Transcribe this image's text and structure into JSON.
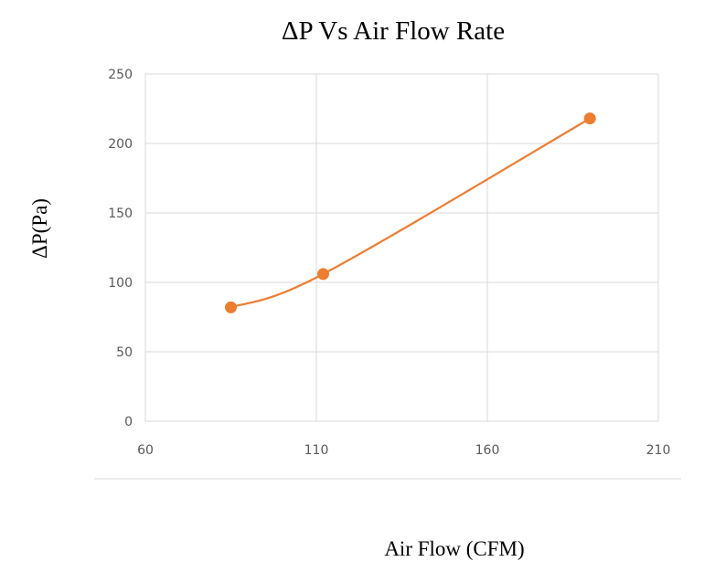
{
  "chart_data": {
    "type": "scatter",
    "title": "ΔP Vs Air Flow Rate",
    "xlabel": "Air Flow (CFM)",
    "ylabel": "ΔP(Pa)",
    "xlim": [
      60,
      210
    ],
    "ylim": [
      0,
      250
    ],
    "xticks": [
      60,
      110,
      160,
      210
    ],
    "yticks": [
      0,
      50,
      100,
      150,
      200,
      250
    ],
    "grid": true,
    "smooth_line": true,
    "series": [
      {
        "name": "ΔP",
        "color": "#ED7D31",
        "x": [
          85,
          112,
          190
        ],
        "y": [
          82,
          106,
          218
        ]
      }
    ]
  }
}
